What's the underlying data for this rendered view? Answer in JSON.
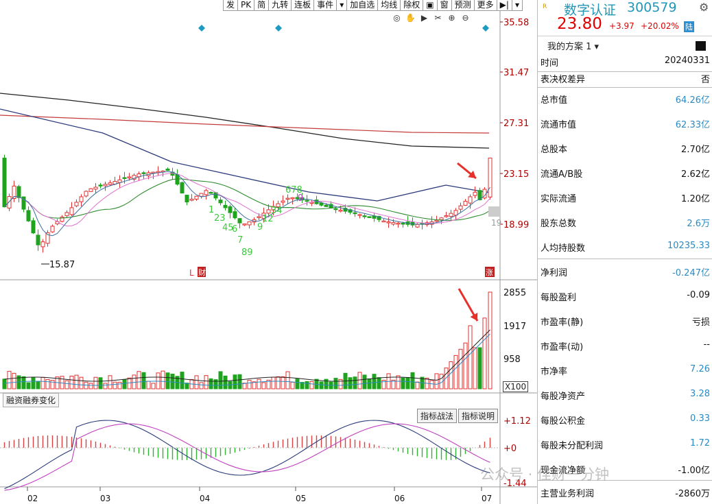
{
  "toolbar": [
    "发",
    "PK",
    "简",
    "九转",
    "连板",
    "事件",
    "▾",
    "加自选",
    "均线",
    "除权",
    "▣",
    "窗",
    "预测",
    "更多",
    "▶|",
    "▾"
  ],
  "tools_icons": [
    "eye-icon",
    "hand-icon",
    "play-icon",
    "scissors-icon",
    "plus-circle-icon",
    "minus-circle-icon"
  ],
  "tools_glyphs": [
    "◎",
    "✋",
    "▶",
    "✂",
    "⊕",
    "⊖"
  ],
  "price_axis": [
    "35.58",
    "31.47",
    "27.31",
    "23.15",
    "18.99"
  ],
  "volume_axis": [
    "2855",
    "1917",
    "958"
  ],
  "volume_unit": "X100",
  "macd_axis": [
    "+1.12",
    "+0",
    "-1.44"
  ],
  "macd_title": "融资融券变化",
  "macd_buttons": [
    "指标战法",
    "指标说明"
  ],
  "date_axis": [
    "02",
    "03",
    "04",
    "05",
    "06",
    "07"
  ],
  "low_label": "15.87",
  "cut_label": "19",
  "nine_turn_labels": [
    {
      "t": "678",
      "c": "#3cc93c"
    },
    {
      "t": "9",
      "c": "#c040c0"
    },
    {
      "t": "1",
      "c": "#3cc93c"
    },
    {
      "t": "23",
      "c": "#3cc93c"
    },
    {
      "t": "45",
      "c": "#3cc93c"
    },
    {
      "t": "6",
      "c": "#3cc93c"
    },
    {
      "t": "7",
      "c": "#3cc93c"
    },
    {
      "t": "89",
      "c": "#3cc93c"
    },
    {
      "t": "34",
      "c": "#3cc93c"
    },
    {
      "t": "12",
      "c": "#3cc93c"
    },
    {
      "t": "9",
      "c": "#3cc93c"
    }
  ],
  "markers": {
    "L": "L",
    "cai": "财",
    "zhang": "涨"
  },
  "panel": {
    "r_badge": "R",
    "name": "数字认证",
    "code": "300579",
    "price": "23.80",
    "change": "+3.97",
    "pct": "+20.02%",
    "lu_badge": "陆",
    "plan": "我的方案 1 ▾",
    "rows": [
      {
        "k": "时间",
        "v": "20240331",
        "c": "black"
      },
      {
        "k": "表决权差异",
        "v": "否",
        "c": "black"
      },
      {
        "k": "总市值",
        "v": "64.26亿",
        "c": "blue"
      },
      {
        "k": "流通市值",
        "v": "62.33亿",
        "c": "blue"
      },
      {
        "k": "总股本",
        "v": "2.70亿",
        "c": "black"
      },
      {
        "k": "流通A/B股",
        "v": "2.62亿",
        "c": "black"
      },
      {
        "k": "实际流通",
        "v": "1.20亿",
        "c": "black"
      },
      {
        "k": "股东总数",
        "v": "2.6万",
        "c": "blue"
      },
      {
        "k": "人均持股数",
        "v": "10235.33",
        "c": "blue"
      },
      {
        "k": "净利润",
        "v": "-0.247亿",
        "c": "blue"
      },
      {
        "k": "每股盈利",
        "v": "-0.09",
        "c": "black"
      },
      {
        "k": "市盈率(静)",
        "v": "亏损",
        "c": "black"
      },
      {
        "k": "市盈率(动)",
        "v": "--",
        "c": "black"
      },
      {
        "k": "市净率",
        "v": "7.26",
        "c": "blue"
      },
      {
        "k": "每股净资产",
        "v": "3.28",
        "c": "blue"
      },
      {
        "k": "每股公积金",
        "v": "0.33",
        "c": "blue"
      },
      {
        "k": "每股未分配利润",
        "v": "1.72",
        "c": "blue"
      },
      {
        "k": "现金流净额",
        "v": "-1.00亿",
        "c": "black"
      },
      {
        "k": "主营业务利润",
        "v": "-2860万",
        "c": "black"
      }
    ]
  },
  "watermark": "公众号 · 佳财一分钟",
  "colors": {
    "up": "#e03030",
    "down": "#1fa31f",
    "blueText": "#2a8ac2",
    "annotation": "#e8302a"
  }
}
